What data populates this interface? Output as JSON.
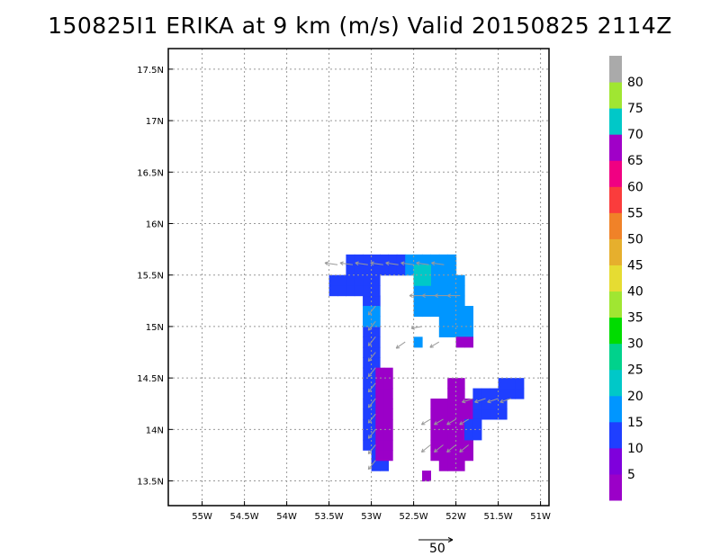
{
  "chart_data": {
    "type": "heatmap",
    "title": "150825I1 ERIKA at 9 km (m/s) Valid 20150825 2114Z",
    "x_ticks": [
      "55W",
      "54.5W",
      "54W",
      "53.5W",
      "53W",
      "52.5W",
      "52W",
      "51.5W",
      "51W"
    ],
    "y_ticks": [
      "13.5N",
      "14N",
      "14.5N",
      "15N",
      "15.5N",
      "16N",
      "16.5N",
      "17N",
      "17.5N"
    ],
    "xlim": [
      -55.4,
      -50.9
    ],
    "ylim": [
      13.26,
      17.7
    ],
    "grid": true,
    "colorbar": {
      "labels": [
        "5",
        "10",
        "15",
        "20",
        "25",
        "30",
        "35",
        "40",
        "45",
        "50",
        "55",
        "60",
        "65",
        "70",
        "75",
        "80"
      ],
      "colors": [
        "#9b00c8",
        "#7f00dc",
        "#1f3fff",
        "#0096ff",
        "#00c8c8",
        "#00d28c",
        "#00dc00",
        "#a0e632",
        "#e6dc32",
        "#e6af2d",
        "#f08228",
        "#fa3c3c",
        "#f00082",
        "#a000c8",
        "#00c8c8",
        "#a0e632",
        "#aaaaaa"
      ]
    },
    "wind_vector_reference": {
      "label": "50"
    }
  }
}
